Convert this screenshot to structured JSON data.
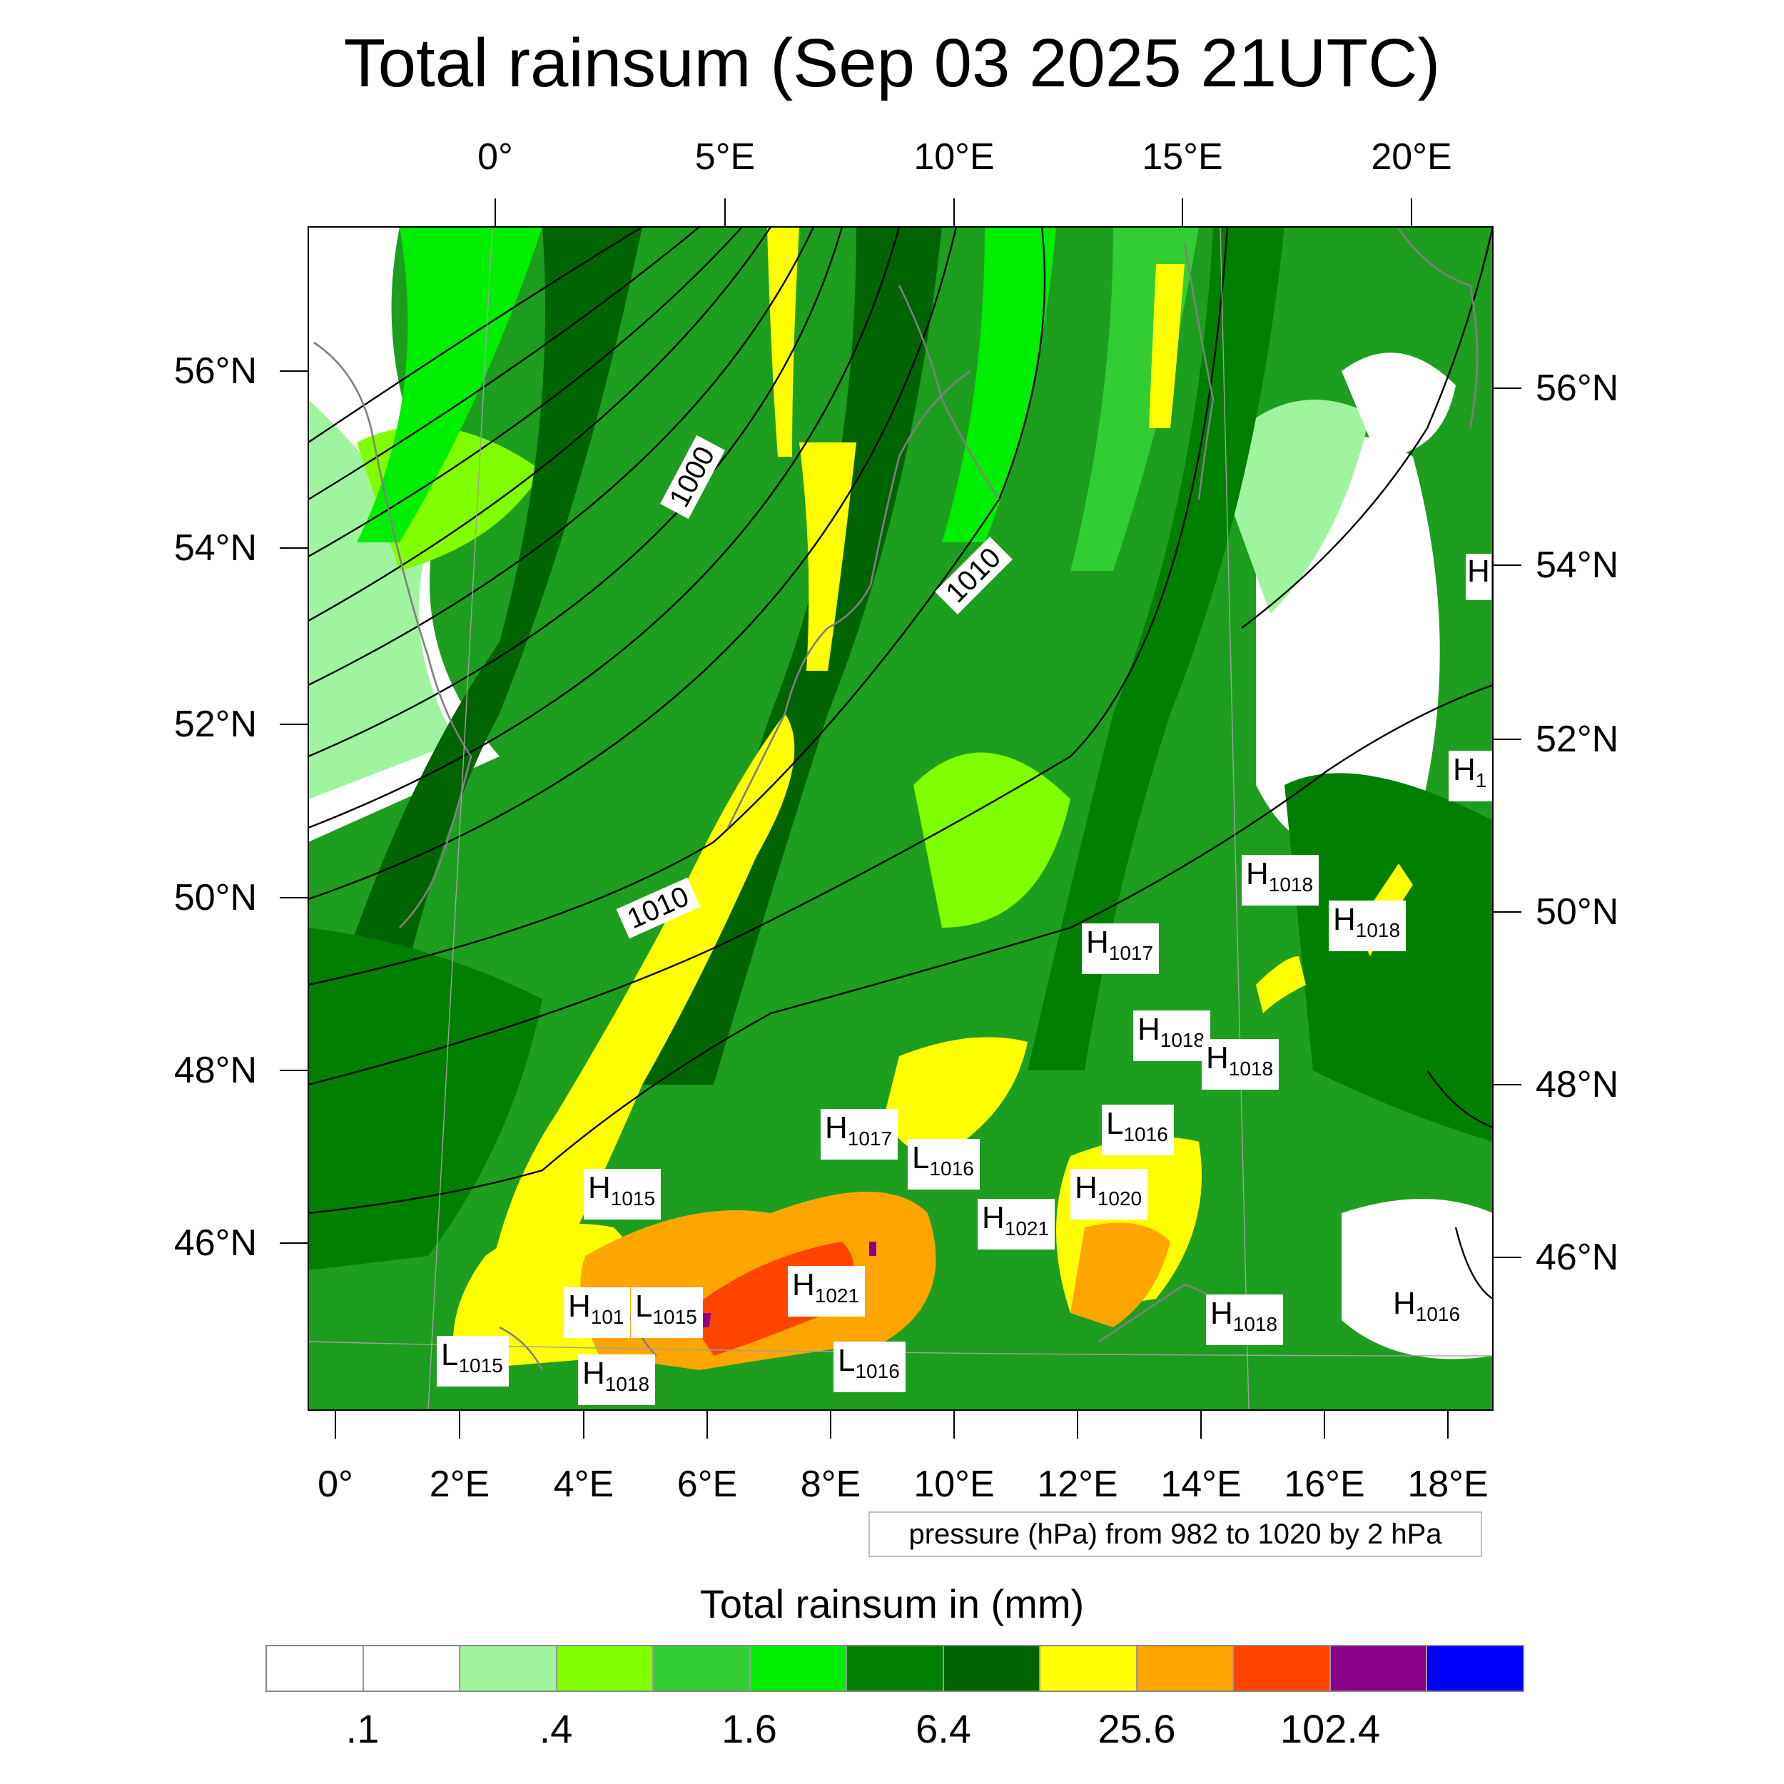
{
  "title": "Total rainsum (Sep 03 2025 21UTC)",
  "axes": {
    "top_lon_labels": [
      "0°",
      "5°E",
      "10°E",
      "15°E",
      "20°E"
    ],
    "bottom_lon_labels": [
      "0°",
      "2°E",
      "4°E",
      "6°E",
      "8°E",
      "10°E",
      "12°E",
      "14°E",
      "16°E",
      "18°E"
    ],
    "left_lat_labels": [
      "56°N",
      "54°N",
      "52°N",
      "50°N",
      "48°N",
      "46°N"
    ],
    "right_lat_labels": [
      "56°N",
      "54°N",
      "52°N",
      "50°N",
      "48°N",
      "46°N"
    ]
  },
  "pressure_note": "pressure (hPa) from 982 to 1020 by 2 hPa",
  "isobar_labels": [
    "1000",
    "1010",
    "1010"
  ],
  "pressure_centers": [
    {
      "type": "H",
      "value": "1018"
    },
    {
      "type": "H",
      "value": "1018"
    },
    {
      "type": "H",
      "value": "1017"
    },
    {
      "type": "H",
      "value": "1018"
    },
    {
      "type": "H",
      "value": "1018"
    },
    {
      "type": "H",
      "value": "1017"
    },
    {
      "type": "L",
      "value": "1016"
    },
    {
      "type": "L",
      "value": "1016"
    },
    {
      "type": "H",
      "value": "1015"
    },
    {
      "type": "H",
      "value": "1020"
    },
    {
      "type": "H",
      "value": "1021"
    },
    {
      "type": "H",
      "value": "1021"
    },
    {
      "type": "H",
      "value": "101"
    },
    {
      "type": "L",
      "value": "1015"
    },
    {
      "type": "L",
      "value": "1015"
    },
    {
      "type": "H",
      "value": "1018"
    },
    {
      "type": "L",
      "value": "1016"
    },
    {
      "type": "H",
      "value": "1018"
    },
    {
      "type": "H",
      "value": "1016"
    },
    {
      "type": "H",
      "value": "1"
    },
    {
      "type": "H",
      "value": ""
    }
  ],
  "legend": {
    "title": "Total rainsum in (mm)",
    "colors": [
      "#ffffff",
      "#ffffff",
      "#9ef59e",
      "#7fff00",
      "#32cd32",
      "#00ee00",
      "#007f00",
      "#006400",
      "#ffff00",
      "#ffa500",
      "#ff4500",
      "#8b008b",
      "#0000ff"
    ],
    "labels": [
      ".1",
      ".4",
      "1.6",
      "6.4",
      "25.6",
      "102.4"
    ]
  }
}
